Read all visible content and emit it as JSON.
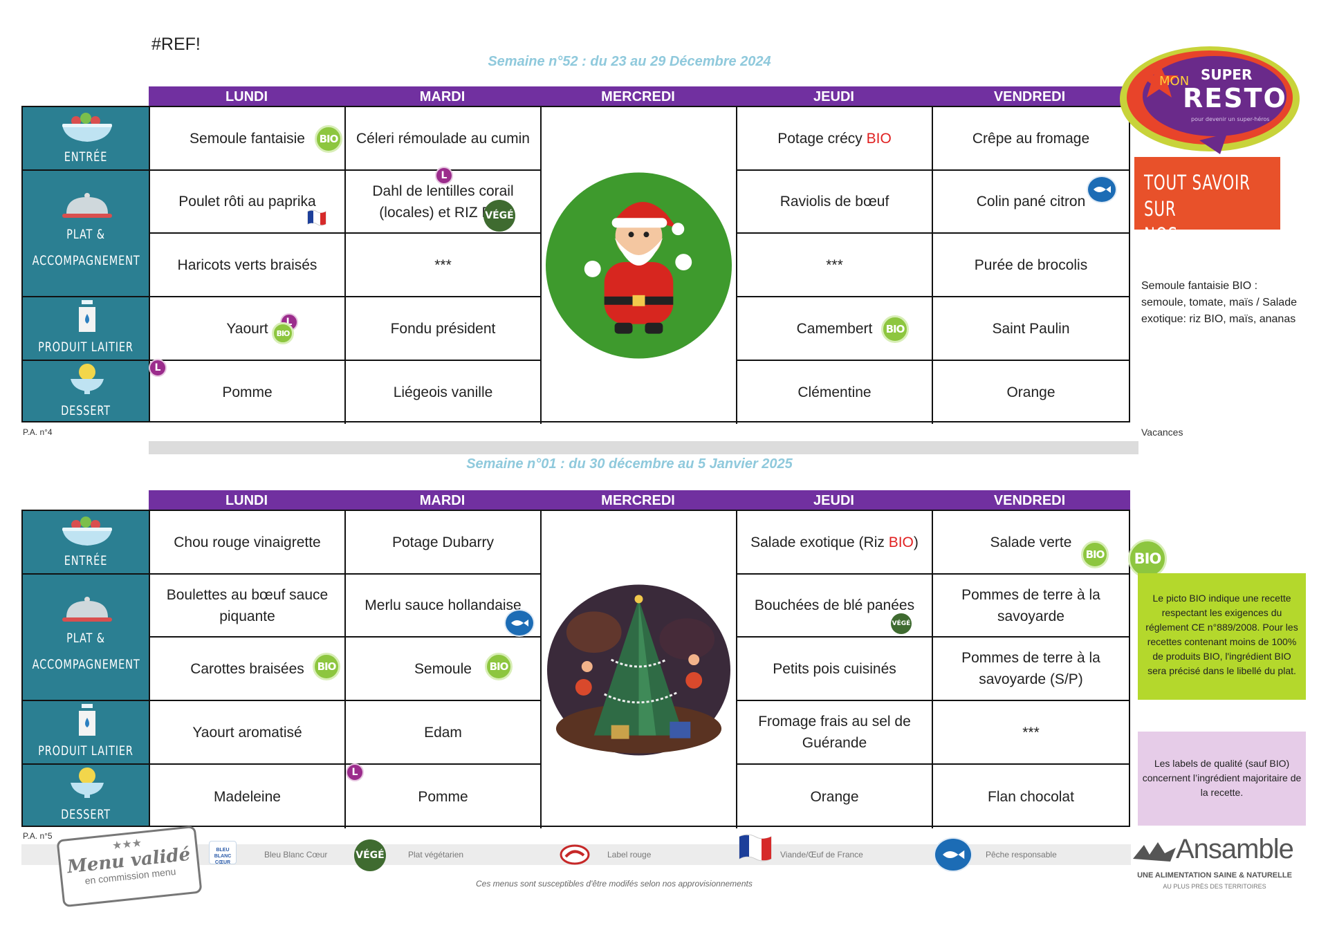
{
  "ref": "#REF!",
  "days": [
    "LUNDI",
    "MARDI",
    "MERCREDI",
    "JEUDI",
    "VENDREDI"
  ],
  "categories": [
    "ENTRÉE",
    "PLAT &",
    "ACCOMPAGNEMENT",
    "PRODUIT LAITIER",
    "DESSERT"
  ],
  "badges": {
    "bio": "BIO",
    "l": "L",
    "vege": "VÉGÉ"
  },
  "week1": {
    "title": "Semaine n°52 : du 23 au 29 Décembre 2024",
    "pa": "P.A. n°4",
    "lundi": {
      "entree": "Semoule fantaisie",
      "plat": "Poulet rôti au paprika",
      "accompagnement": "Haricots verts braisés",
      "laitier": "Yaourt",
      "dessert": "Pomme"
    },
    "mardi": {
      "entree": "Céleri rémoulade au cumin",
      "plat": "Dahl de lentilles corail (locales) et RIZ BIO",
      "accompagnement": "***",
      "laitier": "Fondu président",
      "dessert": "Liégeois vanille"
    },
    "jeudi": {
      "entree_text": "Potage crécy ",
      "entree_bio": "BIO",
      "plat": "Raviolis de bœuf",
      "accompagnement": "***",
      "laitier": "Camembert",
      "dessert": "Clémentine"
    },
    "vendredi": {
      "entree": "Crêpe au fromage",
      "plat": "Colin pané citron",
      "accompagnement": "Purée de brocolis",
      "laitier": "Saint Paulin",
      "dessert": "Orange"
    }
  },
  "week2": {
    "title": "Semaine n°01 : du 30 décembre au 5 Janvier 2025",
    "pa": "P.A. n°5",
    "lundi": {
      "entree": "Chou rouge vinaigrette",
      "plat": "Boulettes au bœuf sauce piquante",
      "accompagnement": "Carottes braisées",
      "laitier": "Yaourt aromatisé",
      "dessert": "Madeleine"
    },
    "mardi": {
      "entree": "Potage Dubarry",
      "plat": "Merlu sauce hollandaise",
      "accompagnement": "Semoule",
      "laitier": "Edam",
      "dessert": "Pomme"
    },
    "jeudi": {
      "entree_text": "Salade exotique (Riz ",
      "entree_bio": "BIO",
      "entree_end": ")",
      "plat": "Bouchées de blé panées",
      "accompagnement": "Petits pois cuisinés",
      "laitier": "Fromage frais au sel de Guérande",
      "dessert": "Orange"
    },
    "vendredi": {
      "entree": "Salade verte",
      "plat": "Pommes de terre à la savoyarde",
      "accompagnement": "Pommes de  terre à la savoyarde (S/P)",
      "laitier": "***",
      "dessert": "Flan chocolat"
    }
  },
  "brand": {
    "line1": "MON",
    "line2": "SUPER",
    "line3": "RESTO",
    "tagline": "pour devenir un super-héros"
  },
  "cta": {
    "line1": "TOUT SAVOIR SUR",
    "line2": "NOS RECETTES"
  },
  "recipe_note": "Semoule fantaisie BIO : semoule, tomate, maïs / Salade exotique: riz BIO, maïs, ananas",
  "vacances": "Vacances",
  "bio_note": "Le picto BIO indique une recette respectant les exigences du réglement CE n°889/2008. Pour les recettes contenant moins de 100% de produits BIO, l'ingrédient BIO sera précisé dans le libellé du plat.",
  "labels_note": "Les labels de qualité (sauf BIO) concernent l’ingrédient majoritaire de la recette.",
  "legend": {
    "bbc_logo": "BLEU BLANC CŒUR",
    "bbc": "Bleu Blanc Cœur",
    "vege": "Plat végétarien",
    "label_rouge": "Label rouge",
    "france": "Viande/Œuf de France",
    "peche": "Pêche responsable"
  },
  "stamp": {
    "stars": "★★★",
    "line1": "Menu validé",
    "line2": "en commission menu"
  },
  "disclaimer": "Ces  menus sont susceptibles d'être modifés selon nos approvisionnements",
  "ansamble": {
    "name": "Ansamble",
    "line1": "UNE ALIMENTATION SAINE & NATURELLE",
    "line2": "AU PLUS PRÈS DES TERRITOIRES"
  },
  "colors": {
    "purple": "#7130a0",
    "teal": "#2b7f92",
    "bio_green": "#8dc63f",
    "orange": "#e8512a",
    "lime": "#b4d82c",
    "lilac": "#e6cce8"
  }
}
